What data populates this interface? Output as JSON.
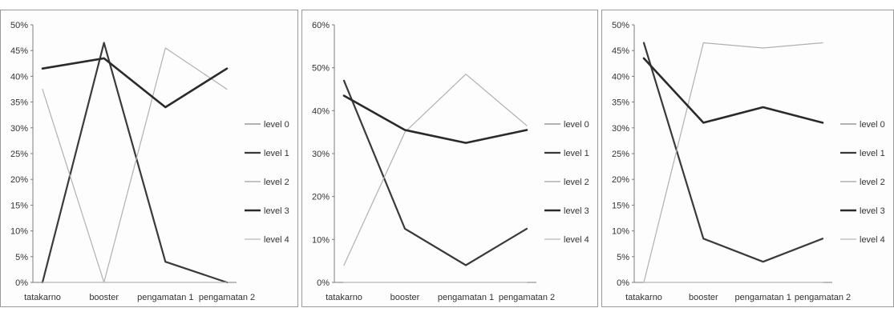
{
  "chart_data": [
    {
      "type": "line",
      "categories": [
        "tatakarno",
        "booster",
        "pengamatan 1",
        "pengamatan 2"
      ],
      "ylim": [
        0,
        50
      ],
      "yticks": [
        "0%",
        "5%",
        "10%",
        "15%",
        "20%",
        "25%",
        "30%",
        "35%",
        "40%",
        "45%",
        "50%"
      ],
      "legend_position": "right",
      "series": [
        {
          "name": "level 0",
          "values": [
            0,
            0,
            0,
            0
          ],
          "color": "#9a9a9a",
          "width": 1.2
        },
        {
          "name": "level 1",
          "values": [
            0,
            46.5,
            4,
            0
          ],
          "color": "#3a3a3a",
          "width": 2.2
        },
        {
          "name": "level 2",
          "values": [
            37.5,
            0,
            45.5,
            37.5
          ],
          "color": "#b0b0b0",
          "width": 1.2
        },
        {
          "name": "level 3",
          "values": [
            41.5,
            43.5,
            34,
            41.5
          ],
          "color": "#2a2a2a",
          "width": 2.6
        },
        {
          "name": "level 4",
          "values": [
            0,
            0,
            0,
            0
          ],
          "color": "#c4c4c4",
          "width": 1.2
        }
      ]
    },
    {
      "type": "line",
      "categories": [
        "tatakarno",
        "booster",
        "pengamatan 1",
        "pengamatan 2"
      ],
      "ylim": [
        0,
        60
      ],
      "yticks": [
        "0%",
        "10%",
        "20%",
        "30%",
        "40%",
        "50%",
        "60%"
      ],
      "legend_position": "right",
      "series": [
        {
          "name": "level 0",
          "values": [
            0,
            0,
            0,
            0
          ],
          "color": "#9a9a9a",
          "width": 1.2
        },
        {
          "name": "level 1",
          "values": [
            47,
            12.5,
            4,
            12.5
          ],
          "color": "#3a3a3a",
          "width": 2.2
        },
        {
          "name": "level 2",
          "values": [
            4,
            35,
            48.5,
            36.5
          ],
          "color": "#b0b0b0",
          "width": 1.2
        },
        {
          "name": "level 3",
          "values": [
            43.5,
            35.5,
            32.5,
            35.5
          ],
          "color": "#2a2a2a",
          "width": 2.6
        },
        {
          "name": "level 4",
          "values": [
            0,
            0,
            0,
            0
          ],
          "color": "#c4c4c4",
          "width": 1.2
        }
      ]
    },
    {
      "type": "line",
      "categories": [
        "tatakarno",
        "booster",
        "pengamatan 1",
        "pengamatan 2"
      ],
      "ylim": [
        0,
        50
      ],
      "yticks": [
        "0%",
        "5%",
        "10%",
        "15%",
        "20%",
        "25%",
        "30%",
        "35%",
        "40%",
        "45%",
        "50%"
      ],
      "legend_position": "right",
      "series": [
        {
          "name": "level 0",
          "values": [
            0,
            0,
            0,
            0
          ],
          "color": "#9a9a9a",
          "width": 1.2
        },
        {
          "name": "level 1",
          "values": [
            46.5,
            8.5,
            4,
            8.5
          ],
          "color": "#3a3a3a",
          "width": 2.2
        },
        {
          "name": "level 2",
          "values": [
            0,
            46.5,
            45.5,
            46.5
          ],
          "color": "#b0b0b0",
          "width": 1.2
        },
        {
          "name": "level 3",
          "values": [
            43.5,
            31,
            34,
            31
          ],
          "color": "#2a2a2a",
          "width": 2.6
        },
        {
          "name": "level 4",
          "values": [
            0,
            0,
            0,
            0
          ],
          "color": "#c4c4c4",
          "width": 1.2
        }
      ]
    }
  ]
}
